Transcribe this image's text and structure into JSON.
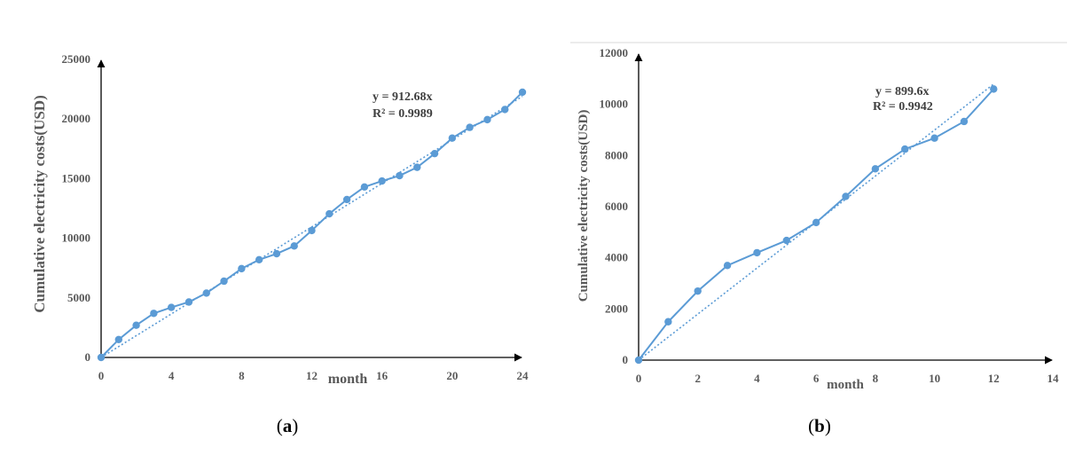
{
  "chart_data": [
    {
      "type": "line",
      "panel_label_open": "(",
      "panel_label_letter": "a",
      "panel_label_close": ")",
      "xlabel": "month",
      "ylabel": "Cumulative electricity costs(USD)",
      "xlim": [
        0,
        24
      ],
      "ylim": [
        0,
        25000
      ],
      "xticks": [
        0,
        4,
        8,
        12,
        16,
        20,
        24
      ],
      "yticks": [
        0,
        5000,
        10000,
        15000,
        20000,
        25000
      ],
      "series": [
        {
          "x": [
            0,
            1,
            2,
            3,
            4,
            5,
            6,
            7,
            8,
            9,
            10,
            11,
            12,
            13,
            14,
            15,
            16,
            17,
            18,
            19,
            20,
            21,
            22,
            23,
            24
          ],
          "values": [
            0,
            1500,
            2700,
            3700,
            4200,
            4650,
            5400,
            6400,
            7450,
            8200,
            8700,
            9350,
            10650,
            12050,
            13250,
            14300,
            14800,
            15250,
            15950,
            17100,
            18400,
            19300,
            19950,
            20800,
            22250
          ],
          "color": "#5b9bd5"
        }
      ],
      "trendline": {
        "type": "linear-through-origin",
        "slope": 912.68,
        "equation": "y = 912.68x",
        "r_squared": "R² = 0.9989",
        "color": "#5b9bd5"
      }
    },
    {
      "type": "line",
      "panel_label_open": "(",
      "panel_label_letter": "b",
      "panel_label_close": ")",
      "xlabel": "month",
      "ylabel": "Cumulative electricity costs(USD)",
      "xlim": [
        0,
        14
      ],
      "ylim": [
        0,
        12000
      ],
      "xticks": [
        0,
        2,
        4,
        6,
        8,
        10,
        12,
        14
      ],
      "yticks": [
        0,
        2000,
        4000,
        6000,
        8000,
        10000,
        12000
      ],
      "series": [
        {
          "x": [
            0,
            1,
            2,
            3,
            4,
            5,
            6,
            7,
            8,
            9,
            10,
            11,
            12
          ],
          "values": [
            0,
            1500,
            2700,
            3700,
            4200,
            4680,
            5380,
            6400,
            7480,
            8250,
            8680,
            9330,
            10600
          ],
          "color": "#5b9bd5"
        }
      ],
      "trendline": {
        "type": "linear-through-origin",
        "slope": 899.6,
        "equation": "y = 899.6x",
        "r_squared": "R² = 0.9942",
        "color": "#5b9bd5"
      }
    }
  ]
}
